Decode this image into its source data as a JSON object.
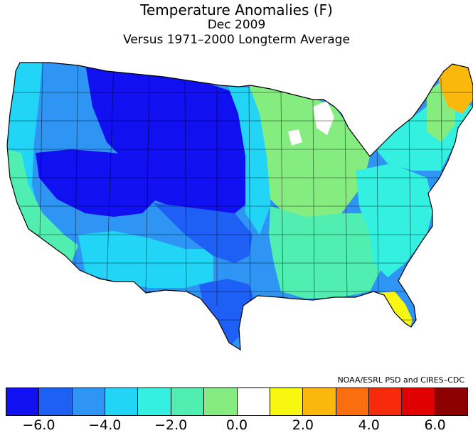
{
  "title": {
    "line1": "Temperature Anomalies (F)",
    "line2": "Dec 2009",
    "line3": "Versus 1971–2000 Longterm Average"
  },
  "credit": "NOAA/ESRL PSD and CIRES–CDC",
  "colorbar": {
    "colors": [
      "#1010f0",
      "#1e5ff5",
      "#2f95f5",
      "#22d4f5",
      "#33f0e0",
      "#50eeb0",
      "#85ec80",
      "#ffffff",
      "#f7f712",
      "#fbb80c",
      "#fb6e10",
      "#f72a0c",
      "#e00000",
      "#8c0000"
    ],
    "ticks": [
      "−6.0",
      "−4.0",
      "−2.0",
      "0.0",
      "2.0",
      "4.0",
      "6.0"
    ]
  },
  "legend_colors": {
    "cold_6": "#1010f0",
    "cold_4": "#2f95f5",
    "cold_2": "#33f0e0",
    "near_0": "#85ec80",
    "zero": "#ffffff",
    "warm_2": "#f7f712",
    "warm_3": "#fbb80c"
  }
}
